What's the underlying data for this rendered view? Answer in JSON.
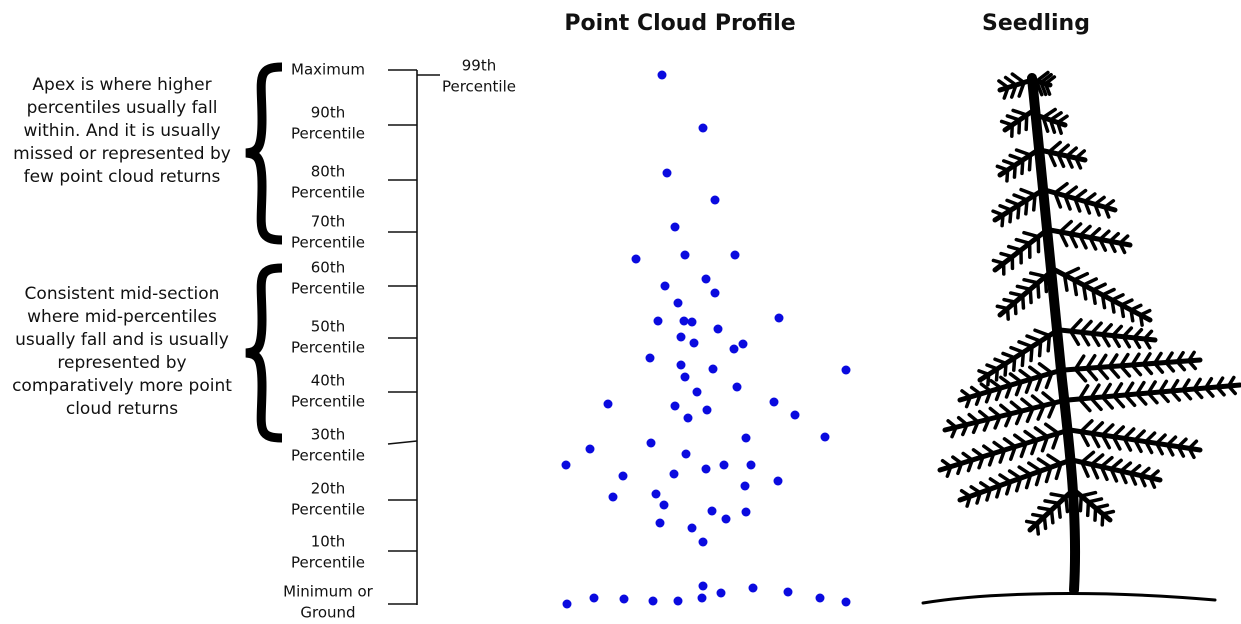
{
  "titles": {
    "profile": "Point Cloud Profile",
    "seedling": "Seedling"
  },
  "annotations": [
    {
      "lines": [
        "Apex is where higher",
        "percentiles usually fall",
        "within. And it is usually",
        "missed or represented by",
        "few point cloud  returns"
      ]
    },
    {
      "lines": [
        "Consistent mid-section",
        "where mid-percentiles",
        "usually fall and is usually",
        "represented by",
        "comparatively more point",
        "cloud  returns"
      ]
    }
  ],
  "scale_labels": [
    {
      "lines": [
        "Maximum"
      ]
    },
    {
      "lines": [
        "90th",
        "Percentile"
      ]
    },
    {
      "lines": [
        "80th",
        "Percentile"
      ]
    },
    {
      "lines": [
        "70th",
        "Percentile"
      ]
    },
    {
      "lines": [
        "60th",
        "Percentile"
      ]
    },
    {
      "lines": [
        "50th",
        "Percentile"
      ]
    },
    {
      "lines": [
        "40th",
        "Percentile"
      ]
    },
    {
      "lines": [
        "30th",
        "Percentile"
      ]
    },
    {
      "lines": [
        "20th",
        "Percentile"
      ]
    },
    {
      "lines": [
        "10th",
        "Percentile"
      ]
    },
    {
      "lines": [
        "Minimum or",
        "Ground"
      ]
    }
  ],
  "side_label": {
    "lines": [
      "99th",
      "Percentile"
    ]
  }
}
